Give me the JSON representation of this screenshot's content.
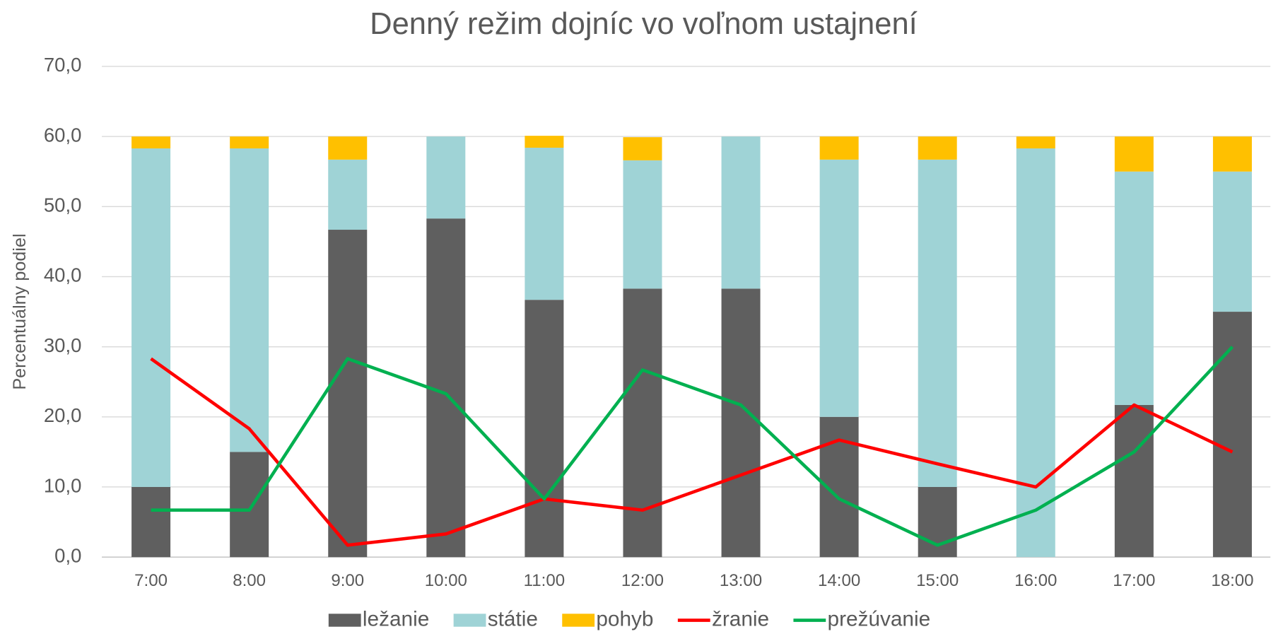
{
  "chart_data": {
    "type": "bar",
    "stacked": true,
    "title": "Denný režim dojníc vo voľnom ustajnení",
    "y_label": "Percentuálny podiel",
    "categories": [
      "7:00",
      "8:00",
      "9:00",
      "10:00",
      "11:00",
      "12:00",
      "13:00",
      "14:00",
      "15:00",
      "16:00",
      "17:00",
      "18:00"
    ],
    "series": [
      {
        "name": "ležanie",
        "type": "bar",
        "color": "#5f5f5f",
        "values": [
          10,
          15,
          46.7,
          48.3,
          36.7,
          38.3,
          38.3,
          20,
          10,
          0,
          21.7,
          35
        ]
      },
      {
        "name": "státie",
        "type": "bar",
        "color": "#9fd3d6",
        "values": [
          48.3,
          43.3,
          10,
          11.7,
          21.7,
          18.3,
          21.7,
          36.7,
          46.7,
          58.3,
          33.3,
          20
        ]
      },
      {
        "name": "pohyb",
        "type": "bar",
        "color": "#ffc000",
        "values": [
          1.7,
          1.7,
          3.3,
          0,
          1.7,
          3.3,
          0,
          3.3,
          3.3,
          1.7,
          5,
          5
        ]
      },
      {
        "name": "žranie",
        "type": "line",
        "color": "#ff0000",
        "values": [
          28.3,
          18.3,
          1.7,
          3.3,
          8.3,
          6.7,
          11.7,
          16.7,
          13.3,
          10,
          21.7,
          15
        ]
      },
      {
        "name": "prežúvanie",
        "type": "line",
        "color": "#00b050",
        "values": [
          6.7,
          6.7,
          28.3,
          23.3,
          8.3,
          26.7,
          21.7,
          8.3,
          1.7,
          6.7,
          15,
          30
        ]
      }
    ],
    "ylim": [
      0,
      70
    ],
    "yticks": [
      {
        "value": 0,
        "label": "0,0"
      },
      {
        "value": 10,
        "label": "10,0"
      },
      {
        "value": 20,
        "label": "20,0"
      },
      {
        "value": 30,
        "label": "30,0"
      },
      {
        "value": 40,
        "label": "40,0"
      },
      {
        "value": 50,
        "label": "50,0"
      },
      {
        "value": 60,
        "label": "60,0"
      },
      {
        "value": 70,
        "label": "70,0"
      }
    ],
    "grid": true,
    "legend": "bottom"
  }
}
